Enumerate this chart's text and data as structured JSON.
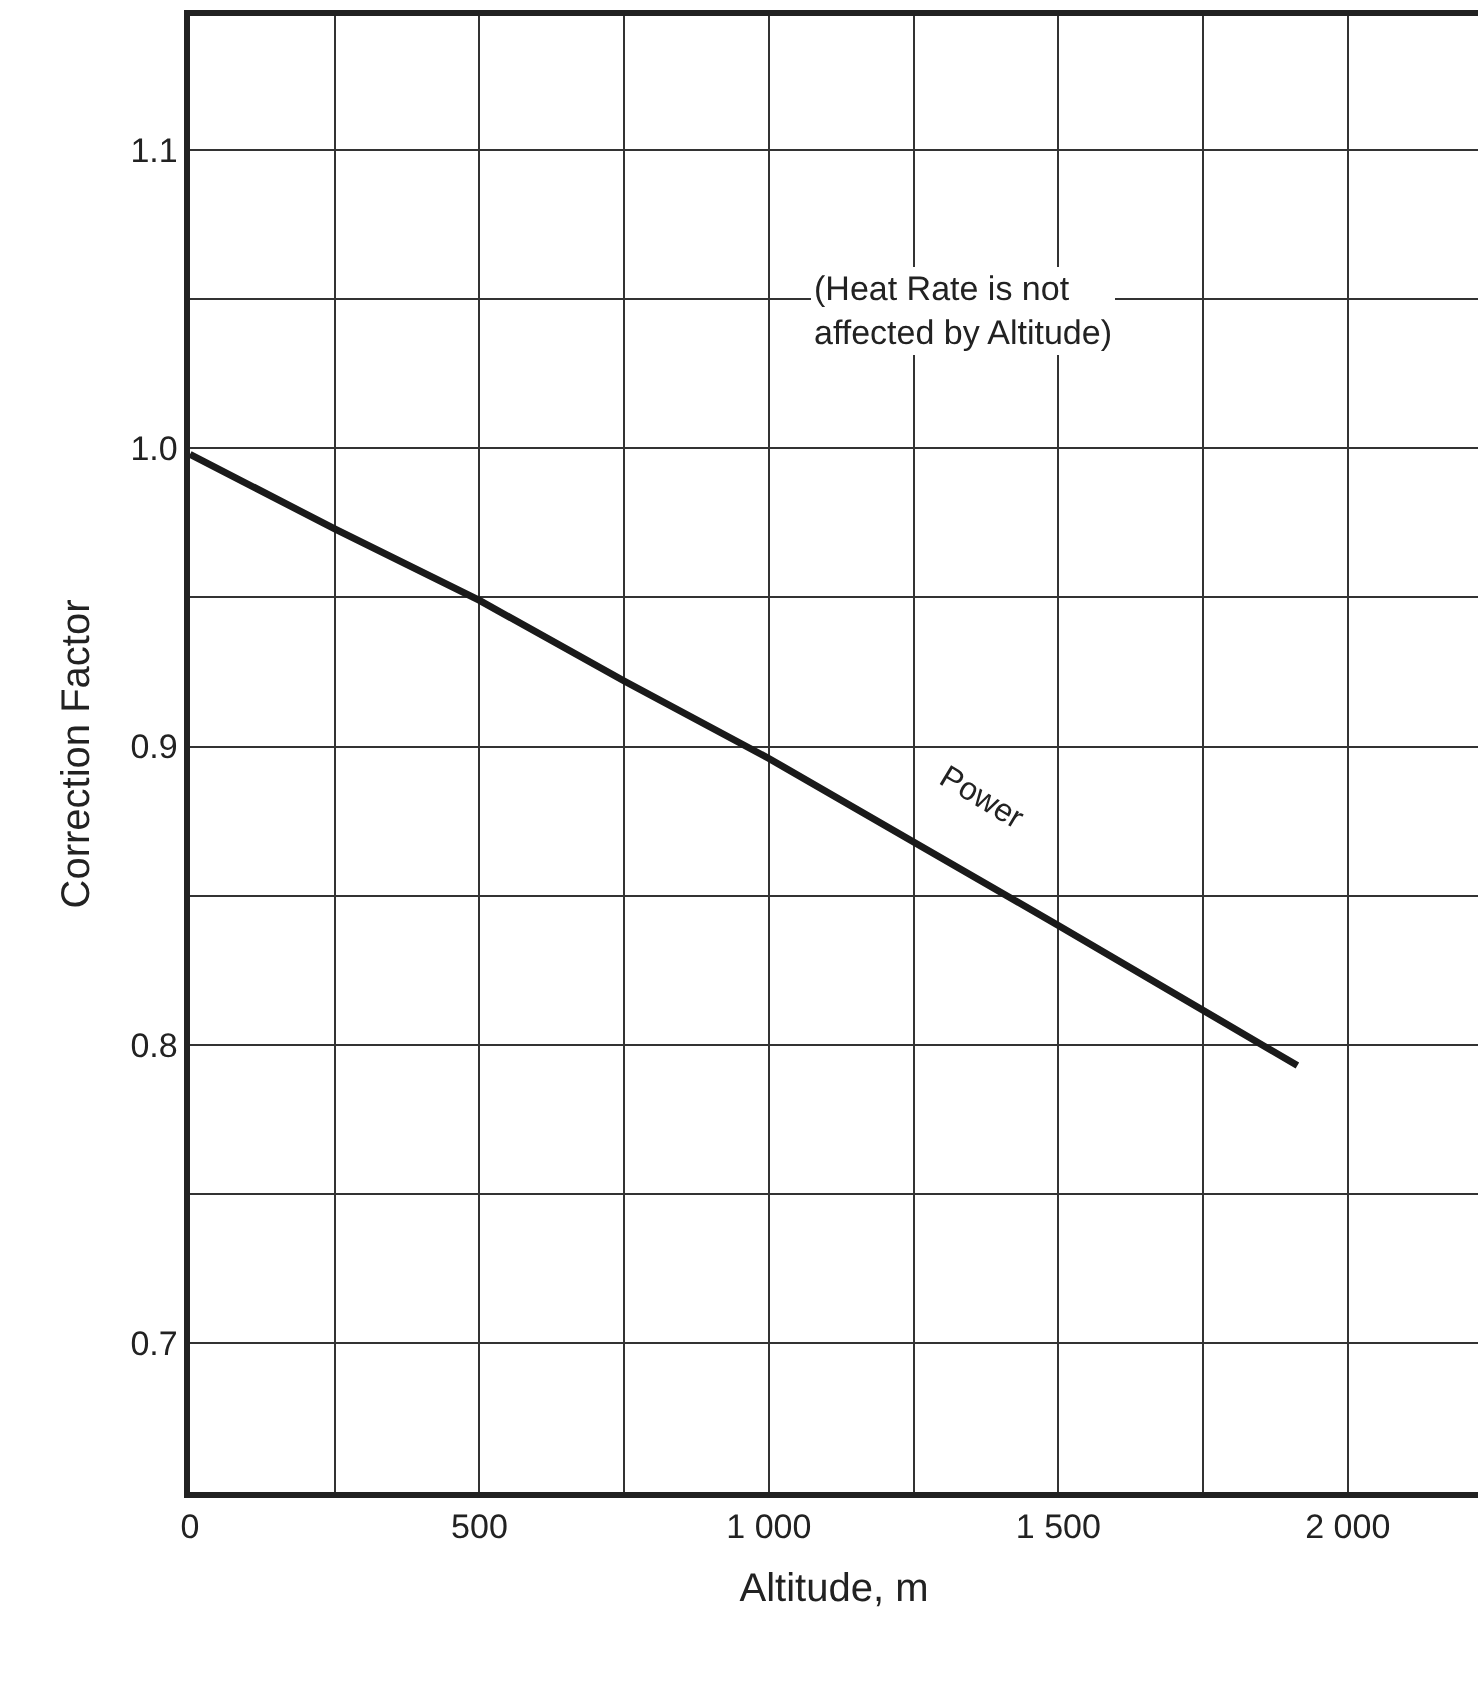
{
  "chart_data": {
    "type": "line",
    "xlabel": "Altitude, m",
    "ylabel": "Correction Factor",
    "x": [
      0,
      250,
      500,
      750,
      1000,
      1250,
      1500,
      1913
    ],
    "series": [
      {
        "color": "#1a1a1a",
        "values": [
          0.998,
          0.973,
          0.949,
          0.922,
          0.896,
          0.868,
          0.84,
          0.793
        ]
      }
    ],
    "xlim": [
      0,
      2225
    ],
    "ylim": [
      0.65,
      1.145
    ],
    "xticks": [
      0,
      {
        "value": 250,
        "label": null
      },
      500,
      {
        "value": 750,
        "label": null
      },
      {
        "value": 1000,
        "label": "1 000"
      },
      {
        "value": 1250,
        "label": null
      },
      {
        "value": 1500,
        "label": "1 500"
      },
      {
        "value": 1750,
        "label": null
      },
      {
        "value": 2000,
        "label": "2 000"
      }
    ],
    "yticks": [
      {
        "value": 0.7,
        "label": "0.7"
      },
      {
        "value": 0.75,
        "label": null
      },
      {
        "value": 0.8,
        "label": "0.8"
      },
      {
        "value": 0.85,
        "label": null
      },
      {
        "value": 0.9,
        "label": "0.9"
      },
      {
        "value": 0.95,
        "label": null
      },
      {
        "value": 1.0,
        "label": "1.0"
      },
      {
        "value": 1.05,
        "label": null
      },
      {
        "value": 1.1,
        "label": "1.1"
      }
    ],
    "grid": true,
    "marker": "none",
    "line_style": "solid",
    "annotations": [
      "(Heat Rate is not\naffected by Altitude)",
      "Power"
    ]
  }
}
